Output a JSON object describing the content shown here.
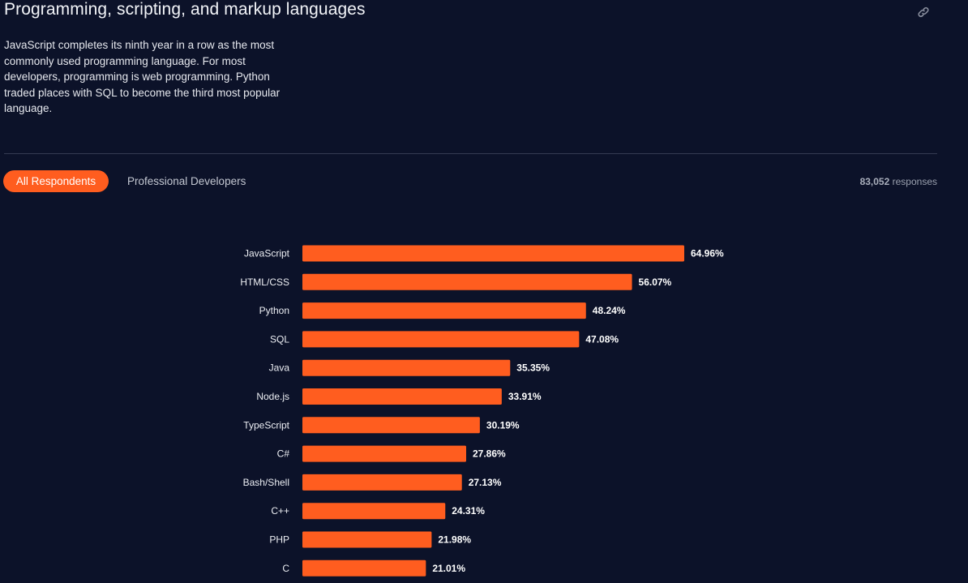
{
  "section": {
    "title": "Programming, scripting, and markup languages",
    "description": "JavaScript completes its ninth year in a row as the most commonly used programming language. For most developers, programming is web programming. Python traded places with SQL to become the third most popular language.",
    "link_icon": "link-icon"
  },
  "tabs": [
    {
      "label": "All Respondents",
      "active": true
    },
    {
      "label": "Professional Developers",
      "active": false
    }
  ],
  "responses": {
    "count": "83,052",
    "label": "responses"
  },
  "colors": {
    "background": "#0c1229",
    "bar": "#ff5d1f",
    "accent": "#ff5d1f"
  },
  "chart_data": {
    "type": "bar",
    "orientation": "horizontal",
    "categories": [
      "JavaScript",
      "HTML/CSS",
      "Python",
      "SQL",
      "Java",
      "Node.js",
      "TypeScript",
      "C#",
      "Bash/Shell",
      "C++",
      "PHP",
      "C"
    ],
    "values": [
      64.96,
      56.07,
      48.24,
      47.08,
      35.35,
      33.91,
      30.19,
      27.86,
      27.13,
      24.31,
      21.98,
      21.01
    ],
    "value_labels": [
      "64.96%",
      "56.07%",
      "48.24%",
      "47.08%",
      "35.35%",
      "33.91%",
      "30.19%",
      "27.86%",
      "27.13%",
      "24.31%",
      "21.98%",
      "21.01%"
    ],
    "title": "",
    "xlabel": "",
    "ylabel": "",
    "grid": false,
    "legend": "none"
  }
}
